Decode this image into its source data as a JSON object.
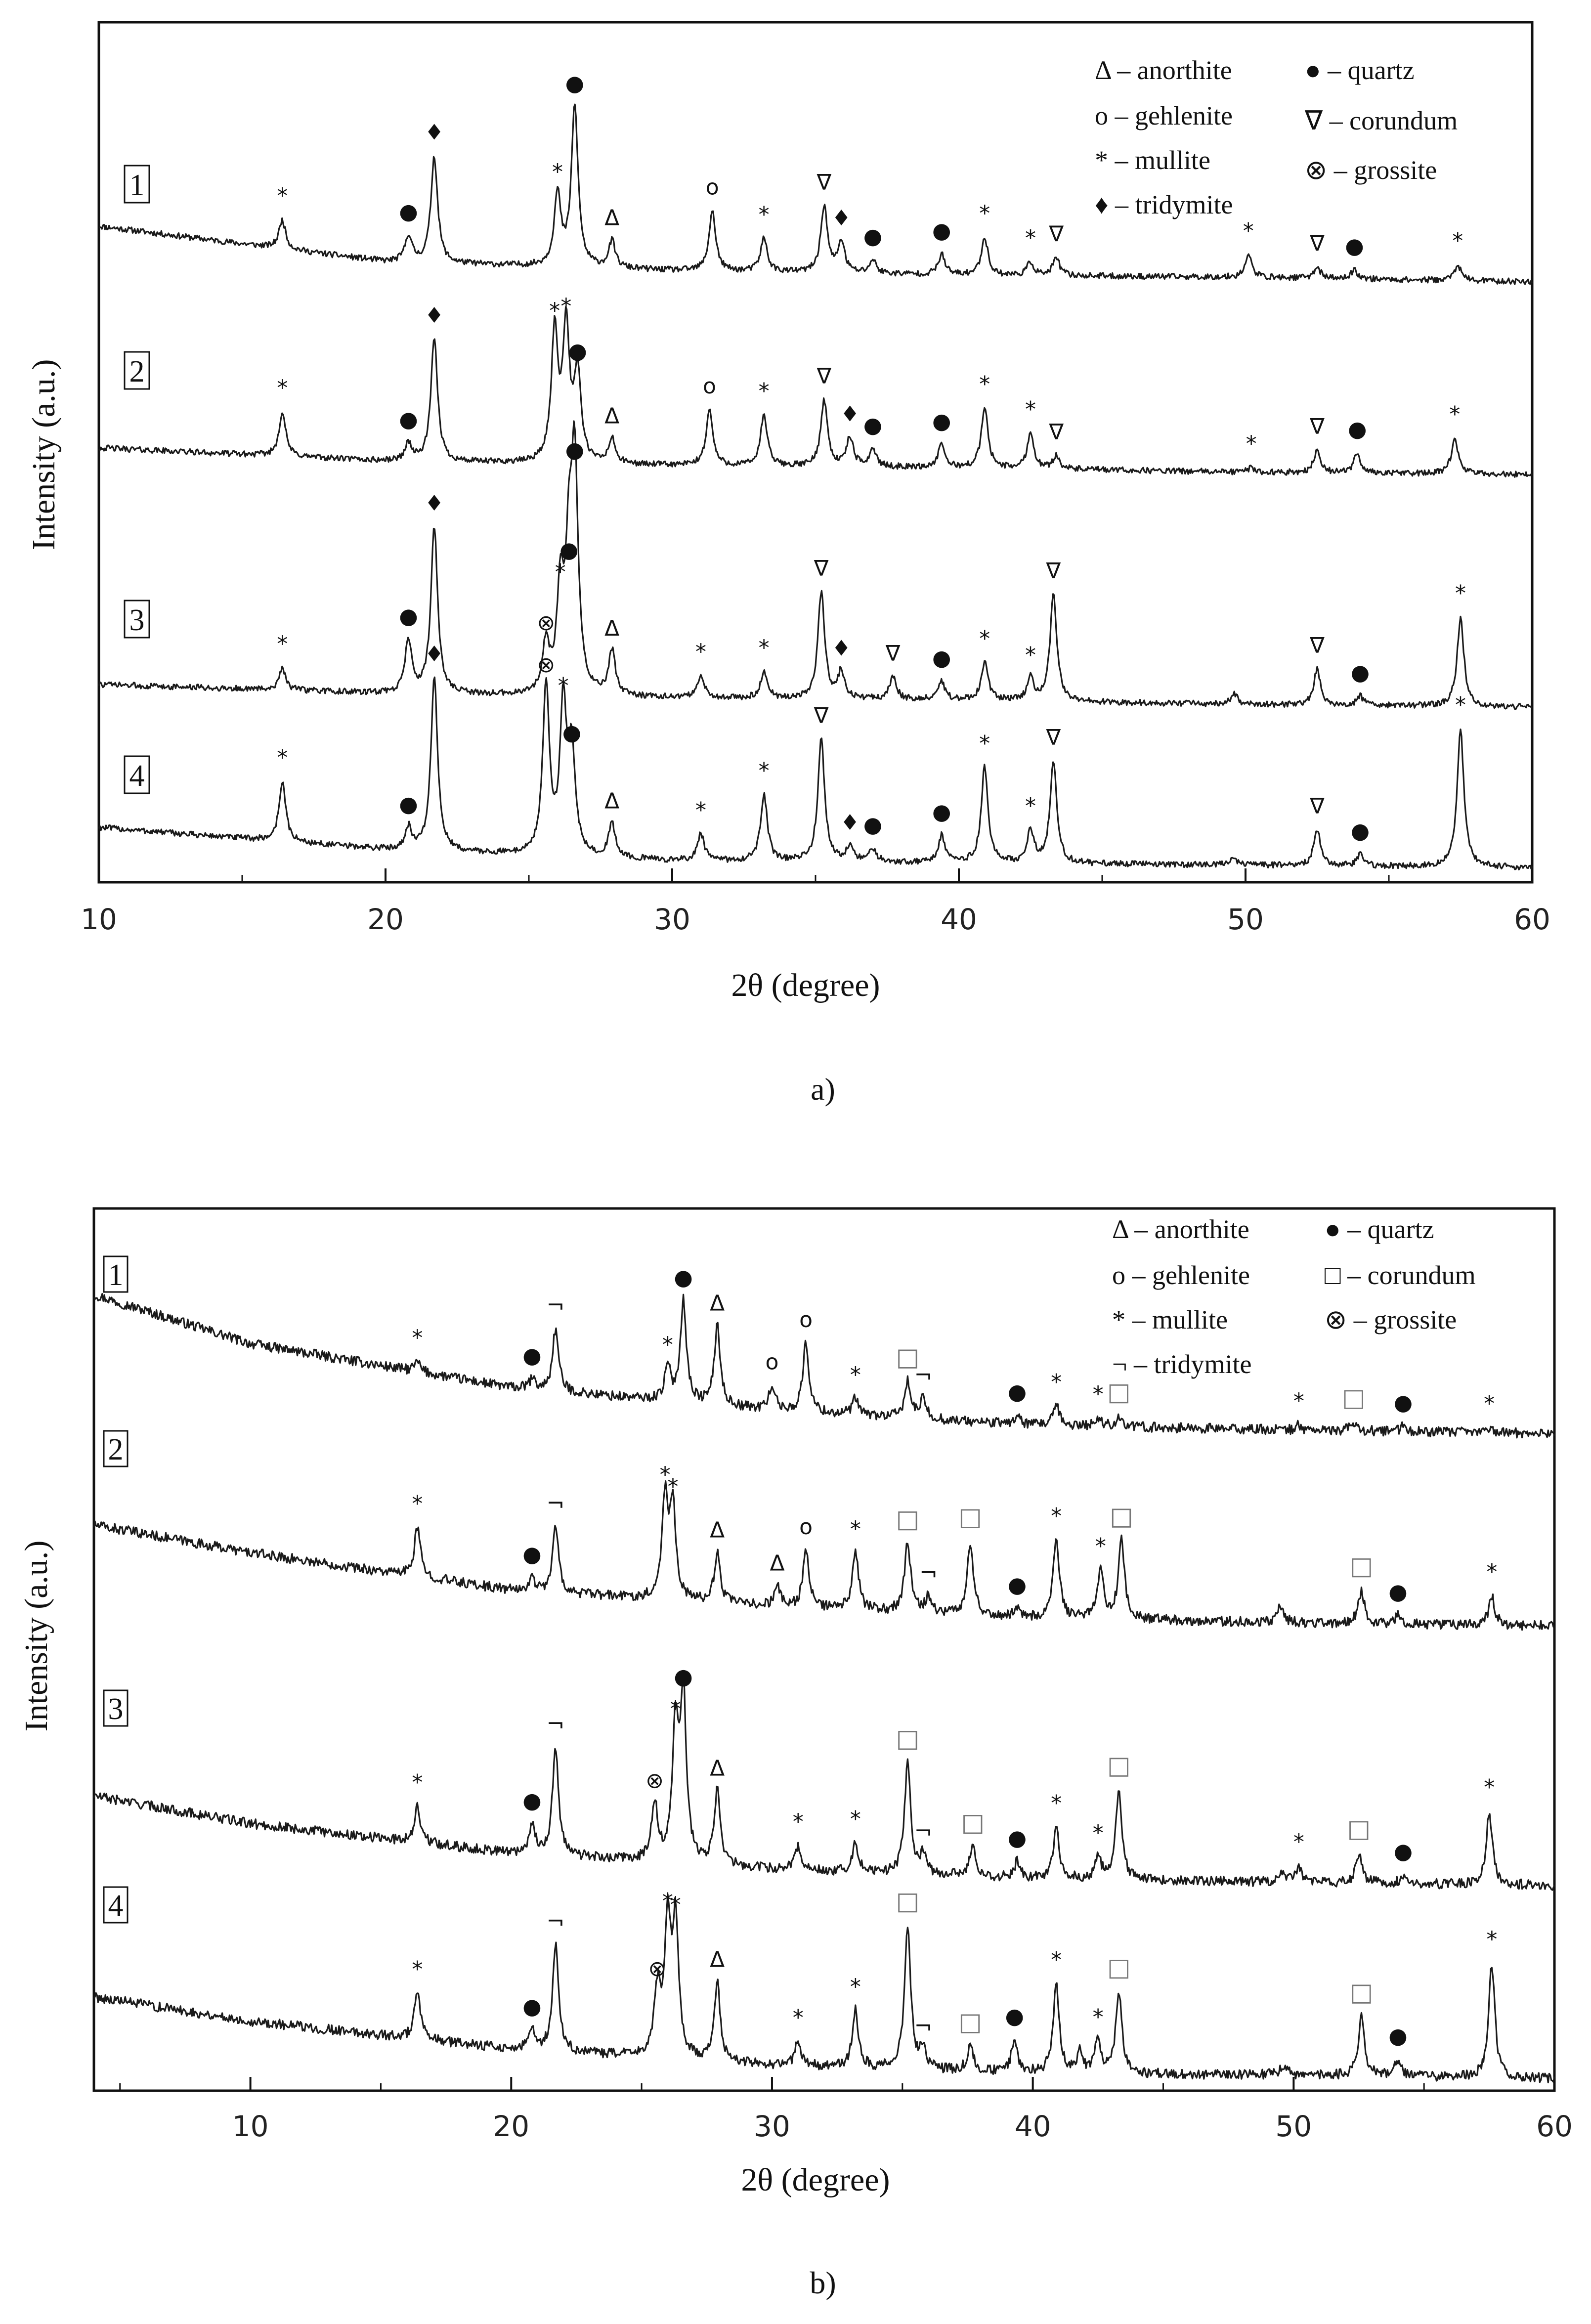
{
  "chart_data": [
    {
      "type": "line",
      "panel_label": "a)",
      "xlabel": "2θ (degree)",
      "ylabel": "Intensity (a.u.)",
      "xlim": [
        10,
        60
      ],
      "xticks": [
        "10",
        "20",
        "30",
        "40",
        "50",
        "60"
      ],
      "grid": false,
      "legend": [
        {
          "symbol": "Δ",
          "label": "Δ – anorthite"
        },
        {
          "symbol": "●",
          "label": "● – quartz"
        },
        {
          "symbol": "o",
          "label": "o – gehlenite"
        },
        {
          "symbol": "∇",
          "label": "∇ – corundum"
        },
        {
          "symbol": "*",
          "label": "* – mullite"
        },
        {
          "symbol": "⊗",
          "label": "⊗ – grossite"
        },
        {
          "symbol": "♦",
          "label": "♦ – tridymite"
        }
      ],
      "series": [
        {
          "name": "1",
          "baseline": [
            [
              10,
              0.25
            ],
            [
              20,
              0.09
            ],
            [
              30,
              0.05
            ],
            [
              40,
              0.03
            ],
            [
              50,
              0.02
            ],
            [
              60,
              0.0
            ]
          ],
          "peaks": [
            [
              16.4,
              0.13
            ],
            [
              20.8,
              0.12
            ],
            [
              21.7,
              0.48
            ],
            [
              26.0,
              0.32
            ],
            [
              26.6,
              0.72
            ],
            [
              27.9,
              0.12
            ],
            [
              31.4,
              0.27
            ],
            [
              33.2,
              0.15
            ],
            [
              35.3,
              0.3
            ],
            [
              35.9,
              0.14
            ],
            [
              37.0,
              0.06
            ],
            [
              39.4,
              0.09
            ],
            [
              40.9,
              0.17
            ],
            [
              42.5,
              0.06
            ],
            [
              43.4,
              0.08
            ],
            [
              50.1,
              0.1
            ],
            [
              52.5,
              0.05
            ],
            [
              53.8,
              0.04
            ],
            [
              57.4,
              0.07
            ]
          ]
        },
        {
          "name": "2",
          "baseline": [
            [
              10,
              0.12
            ],
            [
              20,
              0.06
            ],
            [
              30,
              0.04
            ],
            [
              40,
              0.03
            ],
            [
              50,
              0.01
            ],
            [
              60,
              0.0
            ]
          ],
          "peaks": [
            [
              16.4,
              0.2
            ],
            [
              20.8,
              0.08
            ],
            [
              21.7,
              0.55
            ],
            [
              25.9,
              0.58
            ],
            [
              26.3,
              0.6
            ],
            [
              26.7,
              0.4
            ],
            [
              27.9,
              0.11
            ],
            [
              31.3,
              0.25
            ],
            [
              33.2,
              0.23
            ],
            [
              35.3,
              0.3
            ],
            [
              36.2,
              0.13
            ],
            [
              37.0,
              0.08
            ],
            [
              39.4,
              0.1
            ],
            [
              40.9,
              0.27
            ],
            [
              42.5,
              0.16
            ],
            [
              43.4,
              0.06
            ],
            [
              50.2,
              0.02
            ],
            [
              52.5,
              0.1
            ],
            [
              53.9,
              0.09
            ],
            [
              57.3,
              0.16
            ]
          ]
        },
        {
          "name": "3",
          "baseline": [
            [
              10,
              0.1
            ],
            [
              20,
              0.06
            ],
            [
              30,
              0.04
            ],
            [
              40,
              0.03
            ],
            [
              50,
              0.01
            ],
            [
              60,
              0.0
            ]
          ],
          "peaks": [
            [
              16.4,
              0.1
            ],
            [
              20.8,
              0.24
            ],
            [
              21.7,
              0.75
            ],
            [
              25.6,
              0.22
            ],
            [
              26.1,
              0.45
            ],
            [
              26.4,
              0.55
            ],
            [
              26.6,
              1.0
            ],
            [
              27.9,
              0.2
            ],
            [
              31.0,
              0.1
            ],
            [
              33.2,
              0.12
            ],
            [
              35.2,
              0.48
            ],
            [
              35.9,
              0.12
            ],
            [
              37.7,
              0.1
            ],
            [
              39.4,
              0.08
            ],
            [
              40.9,
              0.17
            ],
            [
              42.5,
              0.1
            ],
            [
              43.3,
              0.48
            ],
            [
              49.6,
              0.05
            ],
            [
              52.5,
              0.16
            ],
            [
              54.0,
              0.04
            ],
            [
              57.5,
              0.4
            ]
          ]
        },
        {
          "name": "4",
          "baseline": [
            [
              10,
              0.18
            ],
            [
              20,
              0.08
            ],
            [
              30,
              0.03
            ],
            [
              40,
              0.02
            ],
            [
              50,
              0.01
            ],
            [
              60,
              0.0
            ]
          ],
          "peaks": [
            [
              16.4,
              0.27
            ],
            [
              20.8,
              0.1
            ],
            [
              21.7,
              0.78
            ],
            [
              25.6,
              0.75
            ],
            [
              26.2,
              0.66
            ],
            [
              26.5,
              0.45
            ],
            [
              27.9,
              0.15
            ],
            [
              31.0,
              0.12
            ],
            [
              33.2,
              0.3
            ],
            [
              35.2,
              0.55
            ],
            [
              36.2,
              0.07
            ],
            [
              37.0,
              0.06
            ],
            [
              39.4,
              0.12
            ],
            [
              40.9,
              0.43
            ],
            [
              42.5,
              0.15
            ],
            [
              43.3,
              0.46
            ],
            [
              49.6,
              0.03
            ],
            [
              52.5,
              0.16
            ],
            [
              54.0,
              0.05
            ],
            [
              57.5,
              0.62
            ]
          ]
        }
      ]
    },
    {
      "type": "line",
      "panel_label": "b)",
      "xlabel": "2θ (degree)",
      "ylabel": "Intensity (a.u.)",
      "xlim": [
        4,
        60
      ],
      "xticks": [
        "10",
        "20",
        "30",
        "40",
        "50",
        "60"
      ],
      "grid": false,
      "legend": [
        {
          "symbol": "Δ",
          "label": "Δ – anorthite"
        },
        {
          "symbol": "●",
          "label": "● – quartz"
        },
        {
          "symbol": "o",
          "label": "o – gehlenite"
        },
        {
          "symbol": "□",
          "label": "□ – corundum"
        },
        {
          "symbol": "*",
          "label": "* – mullite"
        },
        {
          "symbol": "⊗",
          "label": "⊗ – grossite"
        },
        {
          "symbol": "¬",
          "label": "¬ – tridymite"
        }
      ],
      "series": [
        {
          "name": "1",
          "baseline": [
            [
              4,
              0.85
            ],
            [
              10,
              0.55
            ],
            [
              20,
              0.28
            ],
            [
              30,
              0.14
            ],
            [
              40,
              0.05
            ],
            [
              50,
              0.02
            ],
            [
              60,
              0.0
            ]
          ],
          "peaks": [
            [
              16.4,
              0.06
            ],
            [
              20.8,
              0.06
            ],
            [
              21.7,
              0.38
            ],
            [
              26.0,
              0.2
            ],
            [
              26.6,
              0.62
            ],
            [
              27.9,
              0.48
            ],
            [
              30.0,
              0.15
            ],
            [
              31.3,
              0.42
            ],
            [
              33.2,
              0.1
            ],
            [
              35.2,
              0.22
            ],
            [
              35.8,
              0.12
            ],
            [
              39.4,
              0.05
            ],
            [
              40.9,
              0.12
            ],
            [
              42.5,
              0.05
            ],
            [
              43.3,
              0.06
            ],
            [
              50.2,
              0.03
            ],
            [
              52.3,
              0.05
            ],
            [
              54.2,
              0.03
            ],
            [
              57.5,
              0.03
            ]
          ]
        },
        {
          "name": "2",
          "baseline": [
            [
              4,
              0.62
            ],
            [
              10,
              0.45
            ],
            [
              20,
              0.22
            ],
            [
              30,
              0.12
            ],
            [
              40,
              0.05
            ],
            [
              50,
              0.02
            ],
            [
              60,
              0.0
            ]
          ],
          "peaks": [
            [
              16.4,
              0.3
            ],
            [
              20.8,
              0.08
            ],
            [
              21.7,
              0.4
            ],
            [
              25.9,
              0.62
            ],
            [
              26.2,
              0.55
            ],
            [
              27.9,
              0.3
            ],
            [
              30.2,
              0.12
            ],
            [
              31.3,
              0.35
            ],
            [
              33.2,
              0.35
            ],
            [
              35.2,
              0.42
            ],
            [
              36.0,
              0.1
            ],
            [
              37.6,
              0.45
            ],
            [
              39.4,
              0.05
            ],
            [
              40.9,
              0.48
            ],
            [
              42.6,
              0.3
            ],
            [
              43.4,
              0.48
            ],
            [
              49.5,
              0.1
            ],
            [
              52.6,
              0.2
            ],
            [
              54.0,
              0.05
            ],
            [
              57.6,
              0.18
            ]
          ]
        },
        {
          "name": "3",
          "baseline": [
            [
              4,
              0.55
            ],
            [
              10,
              0.38
            ],
            [
              20,
              0.2
            ],
            [
              30,
              0.1
            ],
            [
              40,
              0.04
            ],
            [
              50,
              0.02
            ],
            [
              60,
              0.0
            ]
          ],
          "peaks": [
            [
              16.4,
              0.22
            ],
            [
              20.8,
              0.18
            ],
            [
              21.7,
              0.66
            ],
            [
              25.5,
              0.35
            ],
            [
              26.3,
              0.8
            ],
            [
              26.6,
              1.0
            ],
            [
              27.9,
              0.45
            ],
            [
              31.0,
              0.15
            ],
            [
              33.2,
              0.18
            ],
            [
              35.2,
              0.68
            ],
            [
              35.8,
              0.12
            ],
            [
              37.7,
              0.18
            ],
            [
              39.4,
              0.1
            ],
            [
              40.9,
              0.32
            ],
            [
              42.5,
              0.14
            ],
            [
              43.3,
              0.55
            ],
            [
              49.5,
              0.06
            ],
            [
              50.2,
              0.1
            ],
            [
              52.5,
              0.18
            ],
            [
              54.2,
              0.05
            ],
            [
              57.5,
              0.45
            ]
          ]
        },
        {
          "name": "4",
          "baseline": [
            [
              4,
              0.5
            ],
            [
              10,
              0.35
            ],
            [
              20,
              0.18
            ],
            [
              30,
              0.08
            ],
            [
              40,
              0.03
            ],
            [
              50,
              0.02
            ],
            [
              60,
              0.0
            ]
          ],
          "peaks": [
            [
              16.4,
              0.28
            ],
            [
              20.8,
              0.12
            ],
            [
              21.7,
              0.65
            ],
            [
              25.6,
              0.4
            ],
            [
              26.0,
              0.82
            ],
            [
              26.3,
              0.8
            ],
            [
              27.9,
              0.48
            ],
            [
              31.0,
              0.15
            ],
            [
              33.2,
              0.35
            ],
            [
              35.2,
              0.88
            ],
            [
              35.8,
              0.12
            ],
            [
              37.6,
              0.15
            ],
            [
              39.3,
              0.2
            ],
            [
              40.9,
              0.55
            ],
            [
              41.8,
              0.12
            ],
            [
              42.5,
              0.2
            ],
            [
              43.3,
              0.5
            ],
            [
              49.6,
              0.06
            ],
            [
              52.6,
              0.36
            ],
            [
              54.0,
              0.1
            ],
            [
              57.6,
              0.7
            ]
          ]
        }
      ]
    }
  ],
  "panel_a": {
    "ylabel": "Intensity (a.u.)",
    "xlabel": "2θ (degree)",
    "caption": "a)",
    "ticks": [
      "10",
      "20",
      "30",
      "40",
      "50",
      "60"
    ],
    "legend": {
      "l1": "Δ – anorthite",
      "l2": "o – gehlenite",
      "l3": "* – mullite",
      "l4": "♦ – tridymite",
      "r1": "● – quartz",
      "r2": "∇ – corundum",
      "r3": "⊗ – grossite"
    },
    "curve_labels": [
      "1",
      "2",
      "3",
      "4"
    ]
  },
  "panel_b": {
    "ylabel": "Intensity (a.u.)",
    "xlabel": "2θ (degree)",
    "caption": "b)",
    "ticks": [
      "10",
      "20",
      "30",
      "40",
      "50",
      "60"
    ],
    "legend": {
      "l1": "Δ – anorthite",
      "l2": "o – gehlenite",
      "l3": "* – mullite",
      "l4": "¬ – tridymite",
      "r1": "● – quartz",
      "r2": "□ – corundum",
      "r3": "⊗ – grossite"
    },
    "curve_labels": [
      "1",
      "2",
      "3",
      "4"
    ]
  },
  "colors": {
    "line": "#1a1a1a",
    "axis": "#111111",
    "corundum_marker_b": "#888888"
  }
}
